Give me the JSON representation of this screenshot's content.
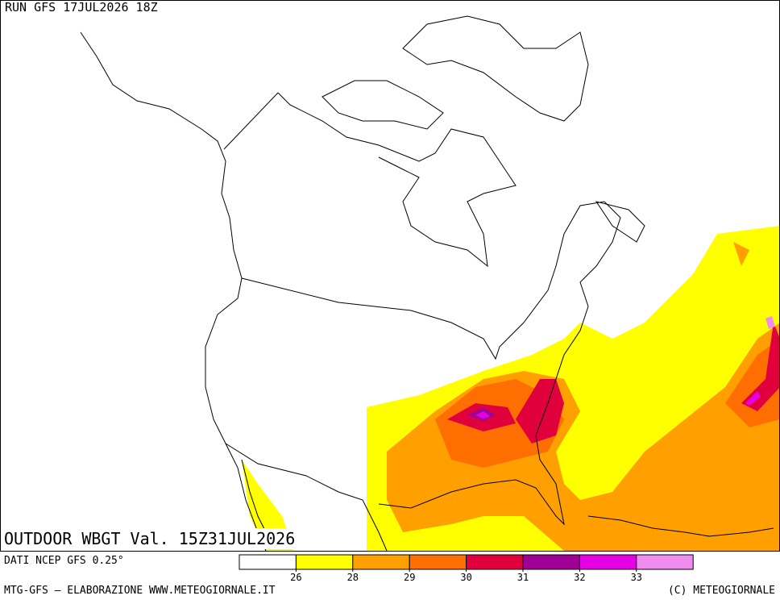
{
  "header": {
    "run": "RUN GFS 17JUL2026 18Z"
  },
  "map": {
    "title": "OUTDOOR WBGT Val. 15Z31JUL2026"
  },
  "legend": {
    "source": "DATI NCEP GFS 0.25°",
    "colors": [
      "#ffffff",
      "#ffff00",
      "#ffa000",
      "#ff6e00",
      "#e0003c",
      "#a00096",
      "#e600e6",
      "#f08cf0"
    ],
    "ticks": [
      26,
      28,
      29,
      30,
      31,
      32,
      33
    ]
  },
  "footer": {
    "left": "MTG-GFS — ELABORAZIONE WWW.METEOGIORNALE.IT",
    "right": "(C) METEOGIORNALE"
  }
}
